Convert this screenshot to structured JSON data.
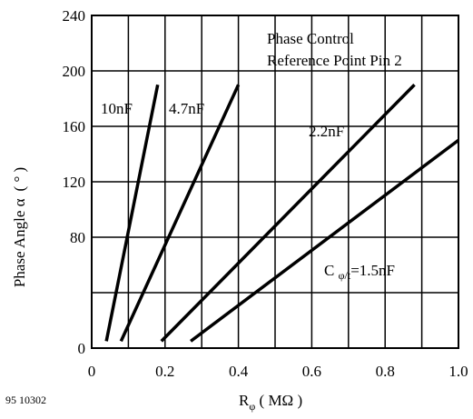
{
  "chart_data": {
    "type": "line",
    "title": "",
    "annotation": {
      "line1": "Phase Control",
      "line2": "Reference Point Pin 2"
    },
    "figure_id": "95 10302",
    "xlabel": {
      "main": "R",
      "sub": "φ",
      "units": " ( MΩ )"
    },
    "ylabel": {
      "main": "Phase Angle α",
      "units": "( ° )"
    },
    "xlim": [
      0,
      1.0
    ],
    "ylim": [
      0,
      240
    ],
    "x_ticks": [
      {
        "value": 0,
        "label": "0"
      },
      {
        "value": 0.2,
        "label": "0.2"
      },
      {
        "value": 0.4,
        "label": "0.4"
      },
      {
        "value": 0.6,
        "label": "0.6"
      },
      {
        "value": 0.8,
        "label": "0.8"
      },
      {
        "value": 1.0,
        "label": "1.0"
      }
    ],
    "y_ticks": [
      {
        "value": 0,
        "label": "0"
      },
      {
        "value": 40,
        "label": ""
      },
      {
        "value": 80,
        "label": "80"
      },
      {
        "value": 120,
        "label": "120"
      },
      {
        "value": 160,
        "label": "160"
      },
      {
        "value": 200,
        "label": "200"
      },
      {
        "value": 240,
        "label": "240"
      }
    ],
    "x_grid_step": 0.1,
    "y_grid_step": 40,
    "grid": true,
    "series": [
      {
        "name": "10nF",
        "points": [
          [
            0.04,
            5
          ],
          [
            0.18,
            190
          ]
        ]
      },
      {
        "name": "4.7nF",
        "points": [
          [
            0.08,
            5
          ],
          [
            0.4,
            190
          ]
        ]
      },
      {
        "name": "2.2nF",
        "points": [
          [
            0.19,
            5
          ],
          [
            0.88,
            190
          ]
        ]
      },
      {
        "name": "C φ/t=1.5nF",
        "label_parts": {
          "prefix": "C ",
          "sub": "φ/t",
          "suffix": "=1.5nF"
        },
        "points": [
          [
            0.27,
            5
          ],
          [
            1.0,
            150
          ]
        ]
      }
    ]
  }
}
